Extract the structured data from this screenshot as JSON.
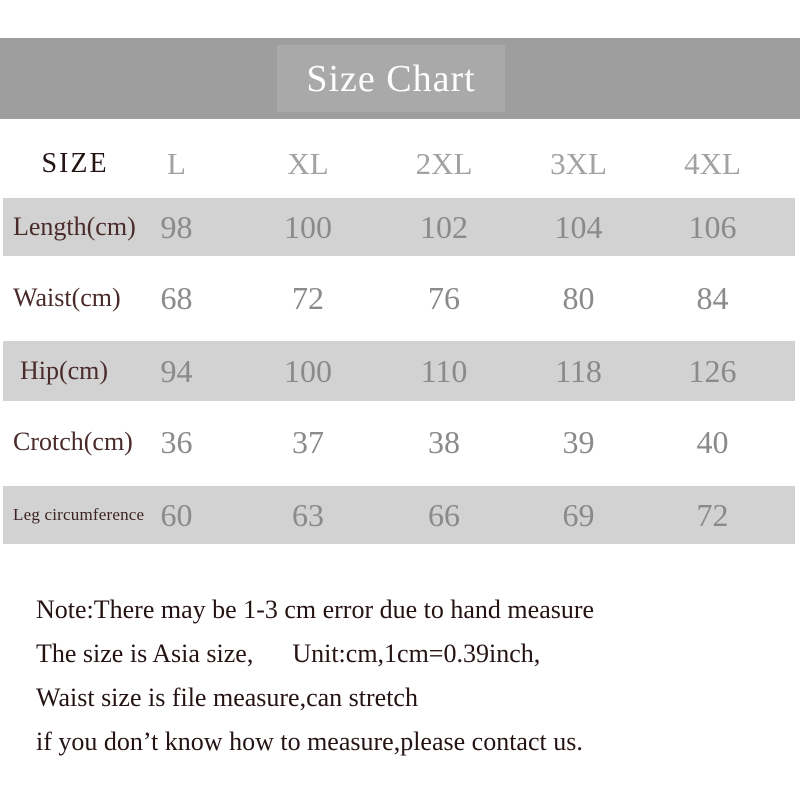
{
  "title": "Size Chart",
  "chart_data": {
    "type": "table",
    "title": "Size Chart",
    "unit": "cm",
    "columns": [
      "SIZE",
      "L",
      "XL",
      "2XL",
      "3XL",
      "4XL"
    ],
    "rows": [
      {
        "label": "Length(cm)",
        "values": [
          "98",
          "100",
          "102",
          "104",
          "106"
        ]
      },
      {
        "label": "Waist(cm)",
        "values": [
          "68",
          "72",
          "76",
          "80",
          "84"
        ]
      },
      {
        "label": "Hip(cm)",
        "values": [
          "94",
          "100",
          "110",
          "118",
          "126"
        ]
      },
      {
        "label": "Crotch(cm)",
        "values": [
          "36",
          "37",
          "38",
          "39",
          "40"
        ]
      },
      {
        "label": "Leg circumference",
        "values": [
          "60",
          "63",
          "66",
          "69",
          "72"
        ]
      }
    ]
  },
  "notes": {
    "lines": [
      "Note:There may be 1-3 cm error due to hand measure",
      "The size is Asia size,      Unit:cm,1cm=0.39inch,",
      "Waist size is file measure,can stretch",
      "if you don’t know how to measure,please contact us."
    ]
  },
  "colors": {
    "banner_band": "#9e9e9e",
    "banner_inner": "#a9a9a9",
    "banner_text": "#fdfdfd",
    "row_shade": "#d2d2d2",
    "header_size_text": "#241414",
    "header_col_text": "#a2a2a2",
    "row_label_text": "#4a2b2b",
    "value_text": "#8a8a8a",
    "note_text": "#251313",
    "background": "#ffffff"
  }
}
